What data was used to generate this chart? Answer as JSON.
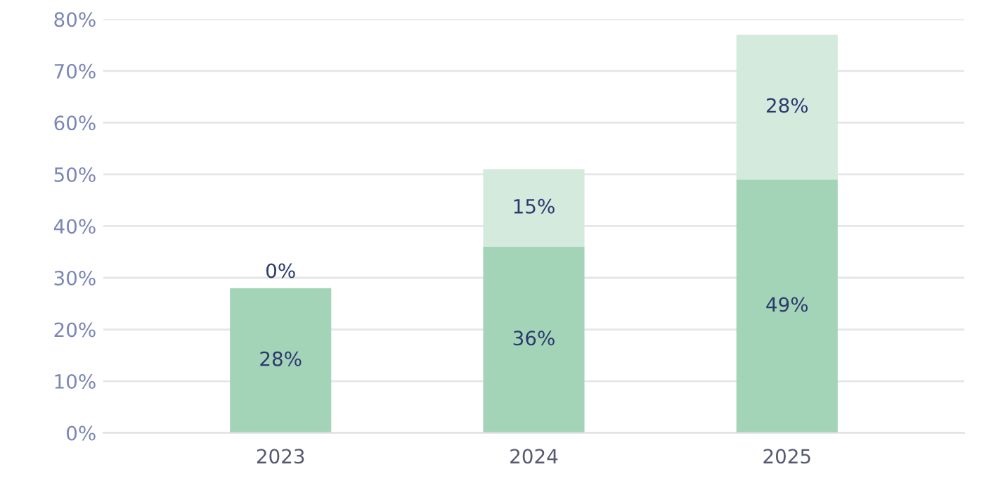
{
  "chart_data": {
    "type": "bar",
    "stacked": true,
    "categories": [
      "2023",
      "2024",
      "2025"
    ],
    "series": [
      {
        "color": "#a3d4b7",
        "values": [
          28,
          36,
          49
        ],
        "value_labels": [
          "28%",
          "36%",
          "49%"
        ]
      },
      {
        "color": "#d3eadd",
        "values": [
          0,
          15,
          28
        ],
        "value_labels": [
          "0%",
          "15%",
          "28%"
        ]
      }
    ],
    "ylim": [
      0,
      80
    ],
    "yticks": [
      {
        "value": 0,
        "label": "0%"
      },
      {
        "value": 10,
        "label": "10%"
      },
      {
        "value": 20,
        "label": "20%"
      },
      {
        "value": 30,
        "label": "30%"
      },
      {
        "value": 40,
        "label": "40%"
      },
      {
        "value": 50,
        "label": "50%"
      },
      {
        "value": 60,
        "label": "60%"
      },
      {
        "value": 70,
        "label": "70%"
      },
      {
        "value": 80,
        "label": "80%"
      }
    ],
    "grid": "y",
    "legend": false
  }
}
